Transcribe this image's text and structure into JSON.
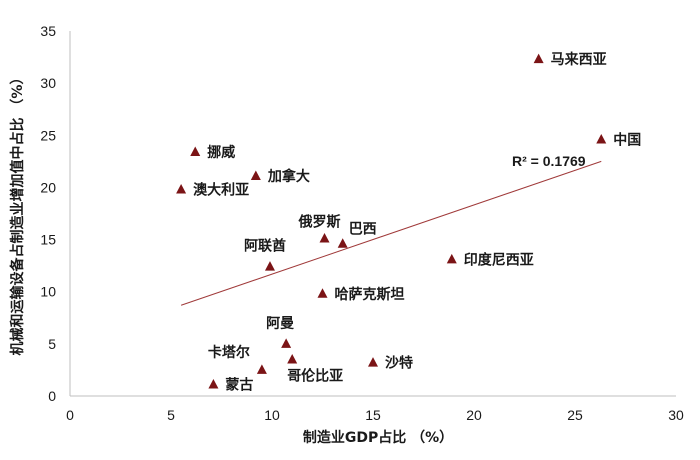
{
  "chart_data": {
    "type": "scatter",
    "xlabel": "制造业GDP占比 （%）",
    "ylabel": "机械和运输设备占制造业增加值中占比 （%）",
    "xlim": [
      0,
      30
    ],
    "ylim": [
      0,
      35
    ],
    "x_ticks": [
      0,
      5,
      10,
      15,
      20,
      25,
      30
    ],
    "y_ticks": [
      0,
      5,
      10,
      15,
      20,
      25,
      30,
      35
    ],
    "grid": false,
    "marker_color": "#7b1416",
    "trendline_color": "#a03a3a",
    "points": [
      {
        "label": "马来西亚",
        "x": 23.2,
        "y": 32.3
      },
      {
        "label": "中国",
        "x": 26.3,
        "y": 24.6
      },
      {
        "label": "挪威",
        "x": 6.2,
        "y": 23.4
      },
      {
        "label": "加拿大",
        "x": 9.2,
        "y": 21.1
      },
      {
        "label": "澳大利亚",
        "x": 5.5,
        "y": 19.8
      },
      {
        "label": "俄罗斯",
        "x": 12.6,
        "y": 15.1
      },
      {
        "label": "巴西",
        "x": 13.5,
        "y": 14.6
      },
      {
        "label": "阿联酋",
        "x": 9.9,
        "y": 12.4
      },
      {
        "label": "印度尼西亚",
        "x": 18.9,
        "y": 13.1
      },
      {
        "label": "哈萨克斯坦",
        "x": 12.5,
        "y": 9.8
      },
      {
        "label": "阿曼",
        "x": 10.7,
        "y": 5.0
      },
      {
        "label": "卡塔尔",
        "x": 9.5,
        "y": 2.5
      },
      {
        "label": "哥伦比亚",
        "x": 11.0,
        "y": 3.5
      },
      {
        "label": "沙特",
        "x": 15.0,
        "y": 3.2
      },
      {
        "label": "蒙古",
        "x": 7.1,
        "y": 1.1
      }
    ],
    "trendline": {
      "x": [
        5.5,
        26.3
      ],
      "y": [
        8.7,
        22.5
      ]
    },
    "annotation": "R² = 0.1769"
  }
}
